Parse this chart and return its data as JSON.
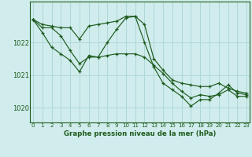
{
  "title": "Graphe pression niveau de la mer (hPa)",
  "background_color": "#d0ecec",
  "grid_color": "#b0d8d8",
  "line_color": "#1e5c1e",
  "series": [
    [
      1022.7,
      1022.55,
      1022.5,
      1022.45,
      1022.45,
      1022.1,
      1022.5,
      1022.55,
      1022.6,
      1022.65,
      1022.8,
      1022.8,
      1022.55,
      1021.5,
      1021.15,
      1020.85,
      1020.75,
      1020.7,
      1020.65,
      1020.65,
      1020.75,
      1020.6,
      1020.5,
      1020.45
    ],
    [
      1022.7,
      1022.45,
      1022.45,
      1022.2,
      1021.75,
      1021.35,
      1021.55,
      1021.55,
      1022.0,
      1022.4,
      1022.75,
      1022.8,
      1022.0,
      1021.25,
      1020.75,
      1020.55,
      1020.35,
      1020.05,
      1020.25,
      1020.25,
      1020.45,
      1020.7,
      1020.45,
      1020.4
    ],
    [
      1022.7,
      1022.3,
      1021.85,
      1021.65,
      1021.45,
      1021.1,
      1021.6,
      1021.55,
      1021.6,
      1021.65,
      1021.65,
      1021.65,
      1021.55,
      1021.3,
      1021.05,
      1020.75,
      1020.5,
      1020.3,
      1020.4,
      1020.35,
      1020.4,
      1020.55,
      1020.35,
      1020.35
    ]
  ],
  "x_labels": [
    "0",
    "1",
    "2",
    "3",
    "4",
    "5",
    "6",
    "7",
    "8",
    "9",
    "10",
    "11",
    "12",
    "13",
    "14",
    "15",
    "16",
    "17",
    "18",
    "19",
    "20",
    "21",
    "22",
    "23"
  ],
  "yticks": [
    1020,
    1021,
    1022
  ],
  "ylim": [
    1019.55,
    1023.25
  ],
  "xlim": [
    -0.3,
    23.3
  ]
}
